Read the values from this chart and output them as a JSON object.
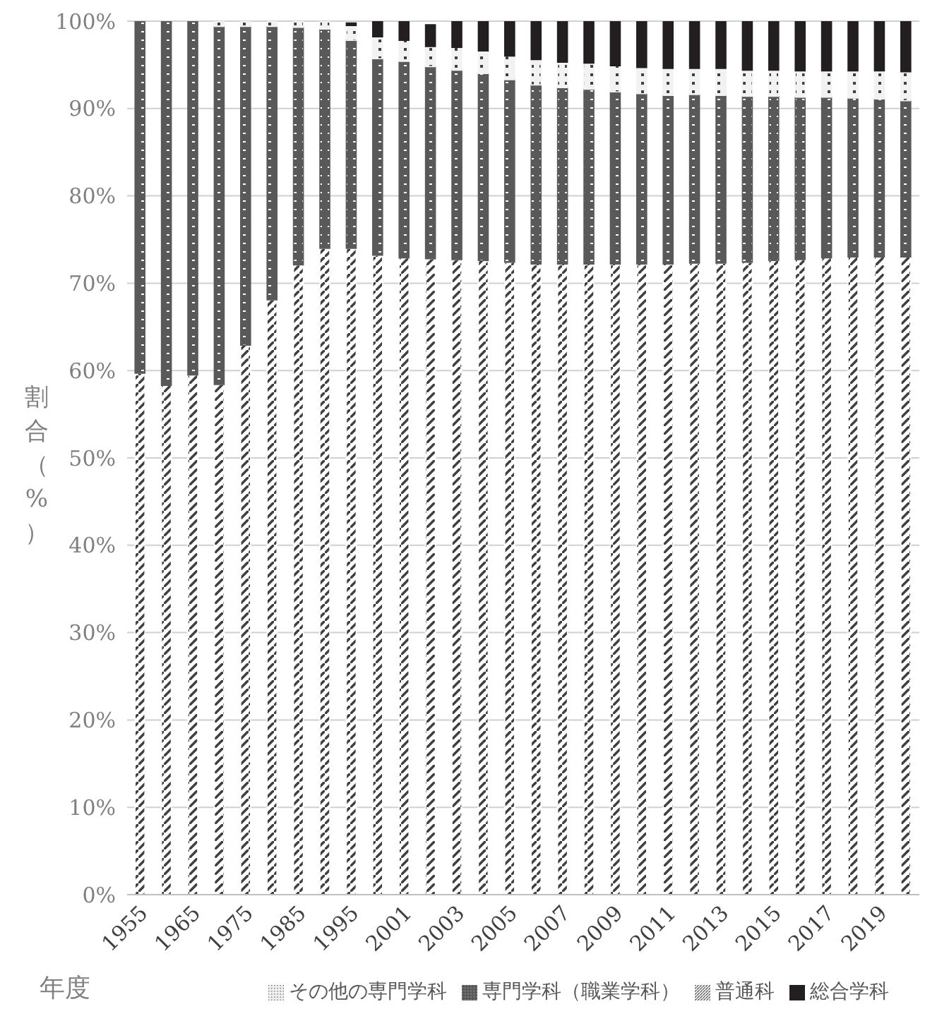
{
  "chart_data": {
    "type": "bar",
    "stacked": true,
    "xlabel": "年度",
    "ylabel": "割合（%）",
    "categories": [
      "1955",
      null,
      "1965",
      null,
      "1975",
      null,
      "1985",
      null,
      "1995",
      null,
      "2001",
      null,
      "2003",
      null,
      "2005",
      null,
      "2007",
      null,
      "2009",
      null,
      "2011",
      null,
      "2013",
      null,
      "2015",
      null,
      "2017",
      null,
      "2019",
      null
    ],
    "series": [
      {
        "name": "普通科",
        "color": "#ffffff",
        "values": [
          59.7,
          58.3,
          59.5,
          58.4,
          62.9,
          68.1,
          72.1,
          74.0,
          74.0,
          73.2,
          72.9,
          72.8,
          72.7,
          72.6,
          72.4,
          72.2,
          72.2,
          72.2,
          72.2,
          72.2,
          72.2,
          72.3,
          72.3,
          72.4,
          72.6,
          72.7,
          72.9,
          73.0,
          73.0,
          73.0
        ]
      },
      {
        "name": "専門学科（職業学科）",
        "color": "#595959",
        "values": [
          40.3,
          41.7,
          40.5,
          41.0,
          36.5,
          31.3,
          27.2,
          25.1,
          23.8,
          22.5,
          22.5,
          22.0,
          21.7,
          21.4,
          20.9,
          20.5,
          20.2,
          20.0,
          19.7,
          19.5,
          19.3,
          19.3,
          19.2,
          19.0,
          18.8,
          18.6,
          18.4,
          18.2,
          18.1,
          17.9
        ]
      },
      {
        "name": "その他の専門学科",
        "color": "#f2f2f2",
        "values": [
          0,
          0,
          0,
          0.6,
          0.6,
          0.6,
          0.7,
          0.9,
          1.7,
          2.5,
          2.4,
          2.3,
          2.6,
          2.6,
          2.7,
          2.9,
          2.9,
          3.0,
          3.0,
          3.0,
          3.1,
          3.0,
          3.1,
          3.0,
          3.0,
          3.0,
          3.0,
          3.1,
          3.2,
          3.3
        ]
      },
      {
        "name": "総合学科",
        "color": "#231f20",
        "values": [
          0,
          0,
          0,
          0,
          0,
          0,
          0,
          0,
          0.3,
          1.8,
          2.2,
          2.5,
          3.0,
          3.4,
          4.0,
          4.4,
          4.7,
          4.8,
          5.1,
          5.3,
          5.4,
          5.4,
          5.4,
          5.6,
          5.6,
          5.7,
          5.7,
          5.7,
          5.7,
          5.8
        ]
      }
    ],
    "ylim": [
      0,
      100
    ],
    "yticks": [
      {
        "value": 0,
        "label": "0%"
      },
      {
        "value": 10,
        "label": "10%"
      },
      {
        "value": 20,
        "label": "20%"
      },
      {
        "value": 30,
        "label": "30%"
      },
      {
        "value": 40,
        "label": "40%"
      },
      {
        "value": 50,
        "label": "50%"
      },
      {
        "value": 60,
        "label": "60%"
      },
      {
        "value": 70,
        "label": "70%"
      },
      {
        "value": 80,
        "label": "80%"
      },
      {
        "value": 90,
        "label": "90%"
      },
      {
        "value": 100,
        "label": "100%"
      }
    ],
    "grid": "y",
    "legend": "bottom"
  }
}
